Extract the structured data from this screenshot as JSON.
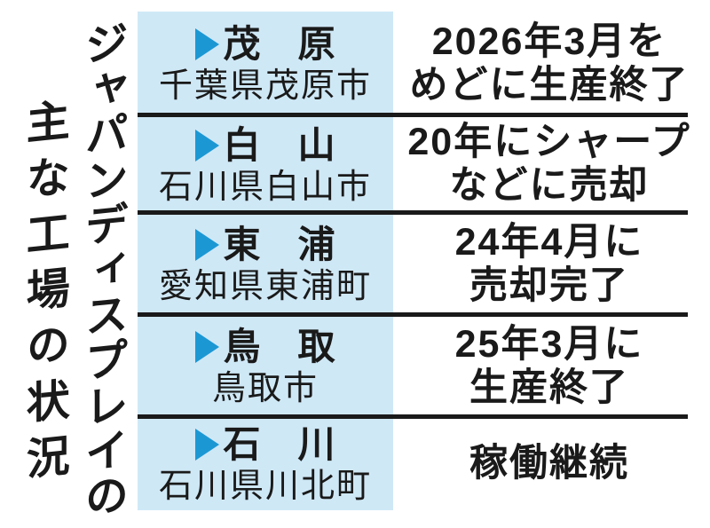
{
  "theme": {
    "cell_bg": "#cfe8f6",
    "marker_blue": "#1b98d4",
    "rule_black": "#1a1a1a",
    "ink": "#1a1a1a",
    "page_bg": "#ffffff"
  },
  "icons": {
    "row_marker": "right-triangle"
  },
  "title": {
    "line1": "ジャパンディスプレイの",
    "line2": "主な工場の状況"
  },
  "table": {
    "rows": [
      {
        "name": "茂　原",
        "location": "千葉県茂原市",
        "status": [
          "2026年3月を",
          "めどに生産終了"
        ]
      },
      {
        "name": "白　山",
        "location": "石川県白山市",
        "status": [
          "20年にシャープ",
          "などに売却"
        ]
      },
      {
        "name": "東　浦",
        "location": "愛知県東浦町",
        "status": [
          "24年4月に",
          "売却完了"
        ]
      },
      {
        "name": "鳥　取",
        "location": "鳥取市",
        "status": [
          "25年3月に",
          "生産終了"
        ]
      },
      {
        "name": "石　川",
        "location": "石川県川北町",
        "status": [
          "稼働継続"
        ]
      }
    ]
  }
}
